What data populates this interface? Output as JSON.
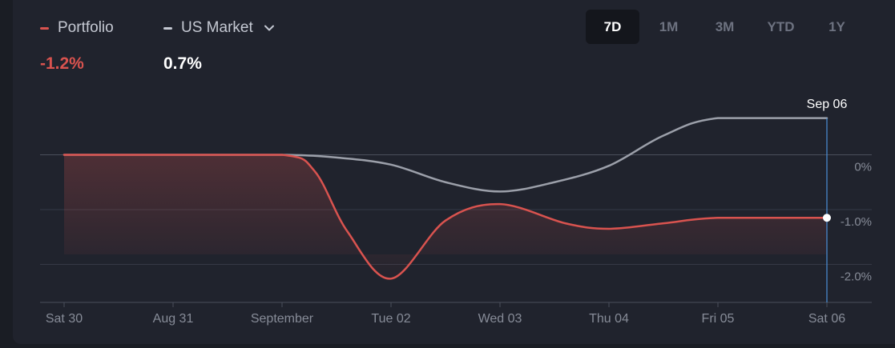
{
  "legend": {
    "portfolio": {
      "label": "Portfolio",
      "value": "-1.2%",
      "color": "#d9534f"
    },
    "market": {
      "label": "US Market",
      "value": "0.7%",
      "color": "#c5c9d3",
      "icon": "chevron-down-icon"
    }
  },
  "periods": [
    "7D",
    "1M",
    "3M",
    "YTD",
    "1Y"
  ],
  "active_period": "7D",
  "hover": {
    "label": "Sep 06"
  },
  "chart_data": {
    "type": "area",
    "categories": [
      "Sat 30",
      "Aug 31",
      "September",
      "Tue 02",
      "Wed 03",
      "Thu 04",
      "Fri 05",
      "Sat 06"
    ],
    "y_tick_labels": [
      "0%",
      "-1.0%",
      "-2.0%"
    ],
    "y_ticks": [
      0,
      -1.0,
      -2.0
    ],
    "ylim": [
      -2.7,
      1.0
    ],
    "grid": true,
    "series": [
      {
        "name": "Portfolio",
        "color": "#d9534f",
        "x": [
          0,
          1,
          2,
          2.3,
          2.6,
          3.0,
          3.5,
          4.0,
          4.6,
          5.0,
          5.5,
          6.0,
          7.0
        ],
        "values": [
          0,
          0,
          0,
          -0.3,
          -1.4,
          -2.26,
          -1.2,
          -0.9,
          -1.25,
          -1.35,
          -1.25,
          -1.15,
          -1.15
        ]
      },
      {
        "name": "US Market",
        "color": "#9ca0aa",
        "x": [
          0,
          1,
          2,
          2.5,
          3.0,
          3.5,
          4.0,
          4.5,
          5.0,
          5.5,
          6.0,
          7.0
        ],
        "values": [
          0,
          0,
          0,
          -0.05,
          -0.18,
          -0.5,
          -0.67,
          -0.5,
          -0.2,
          0.35,
          0.67,
          0.67
        ]
      }
    ]
  }
}
